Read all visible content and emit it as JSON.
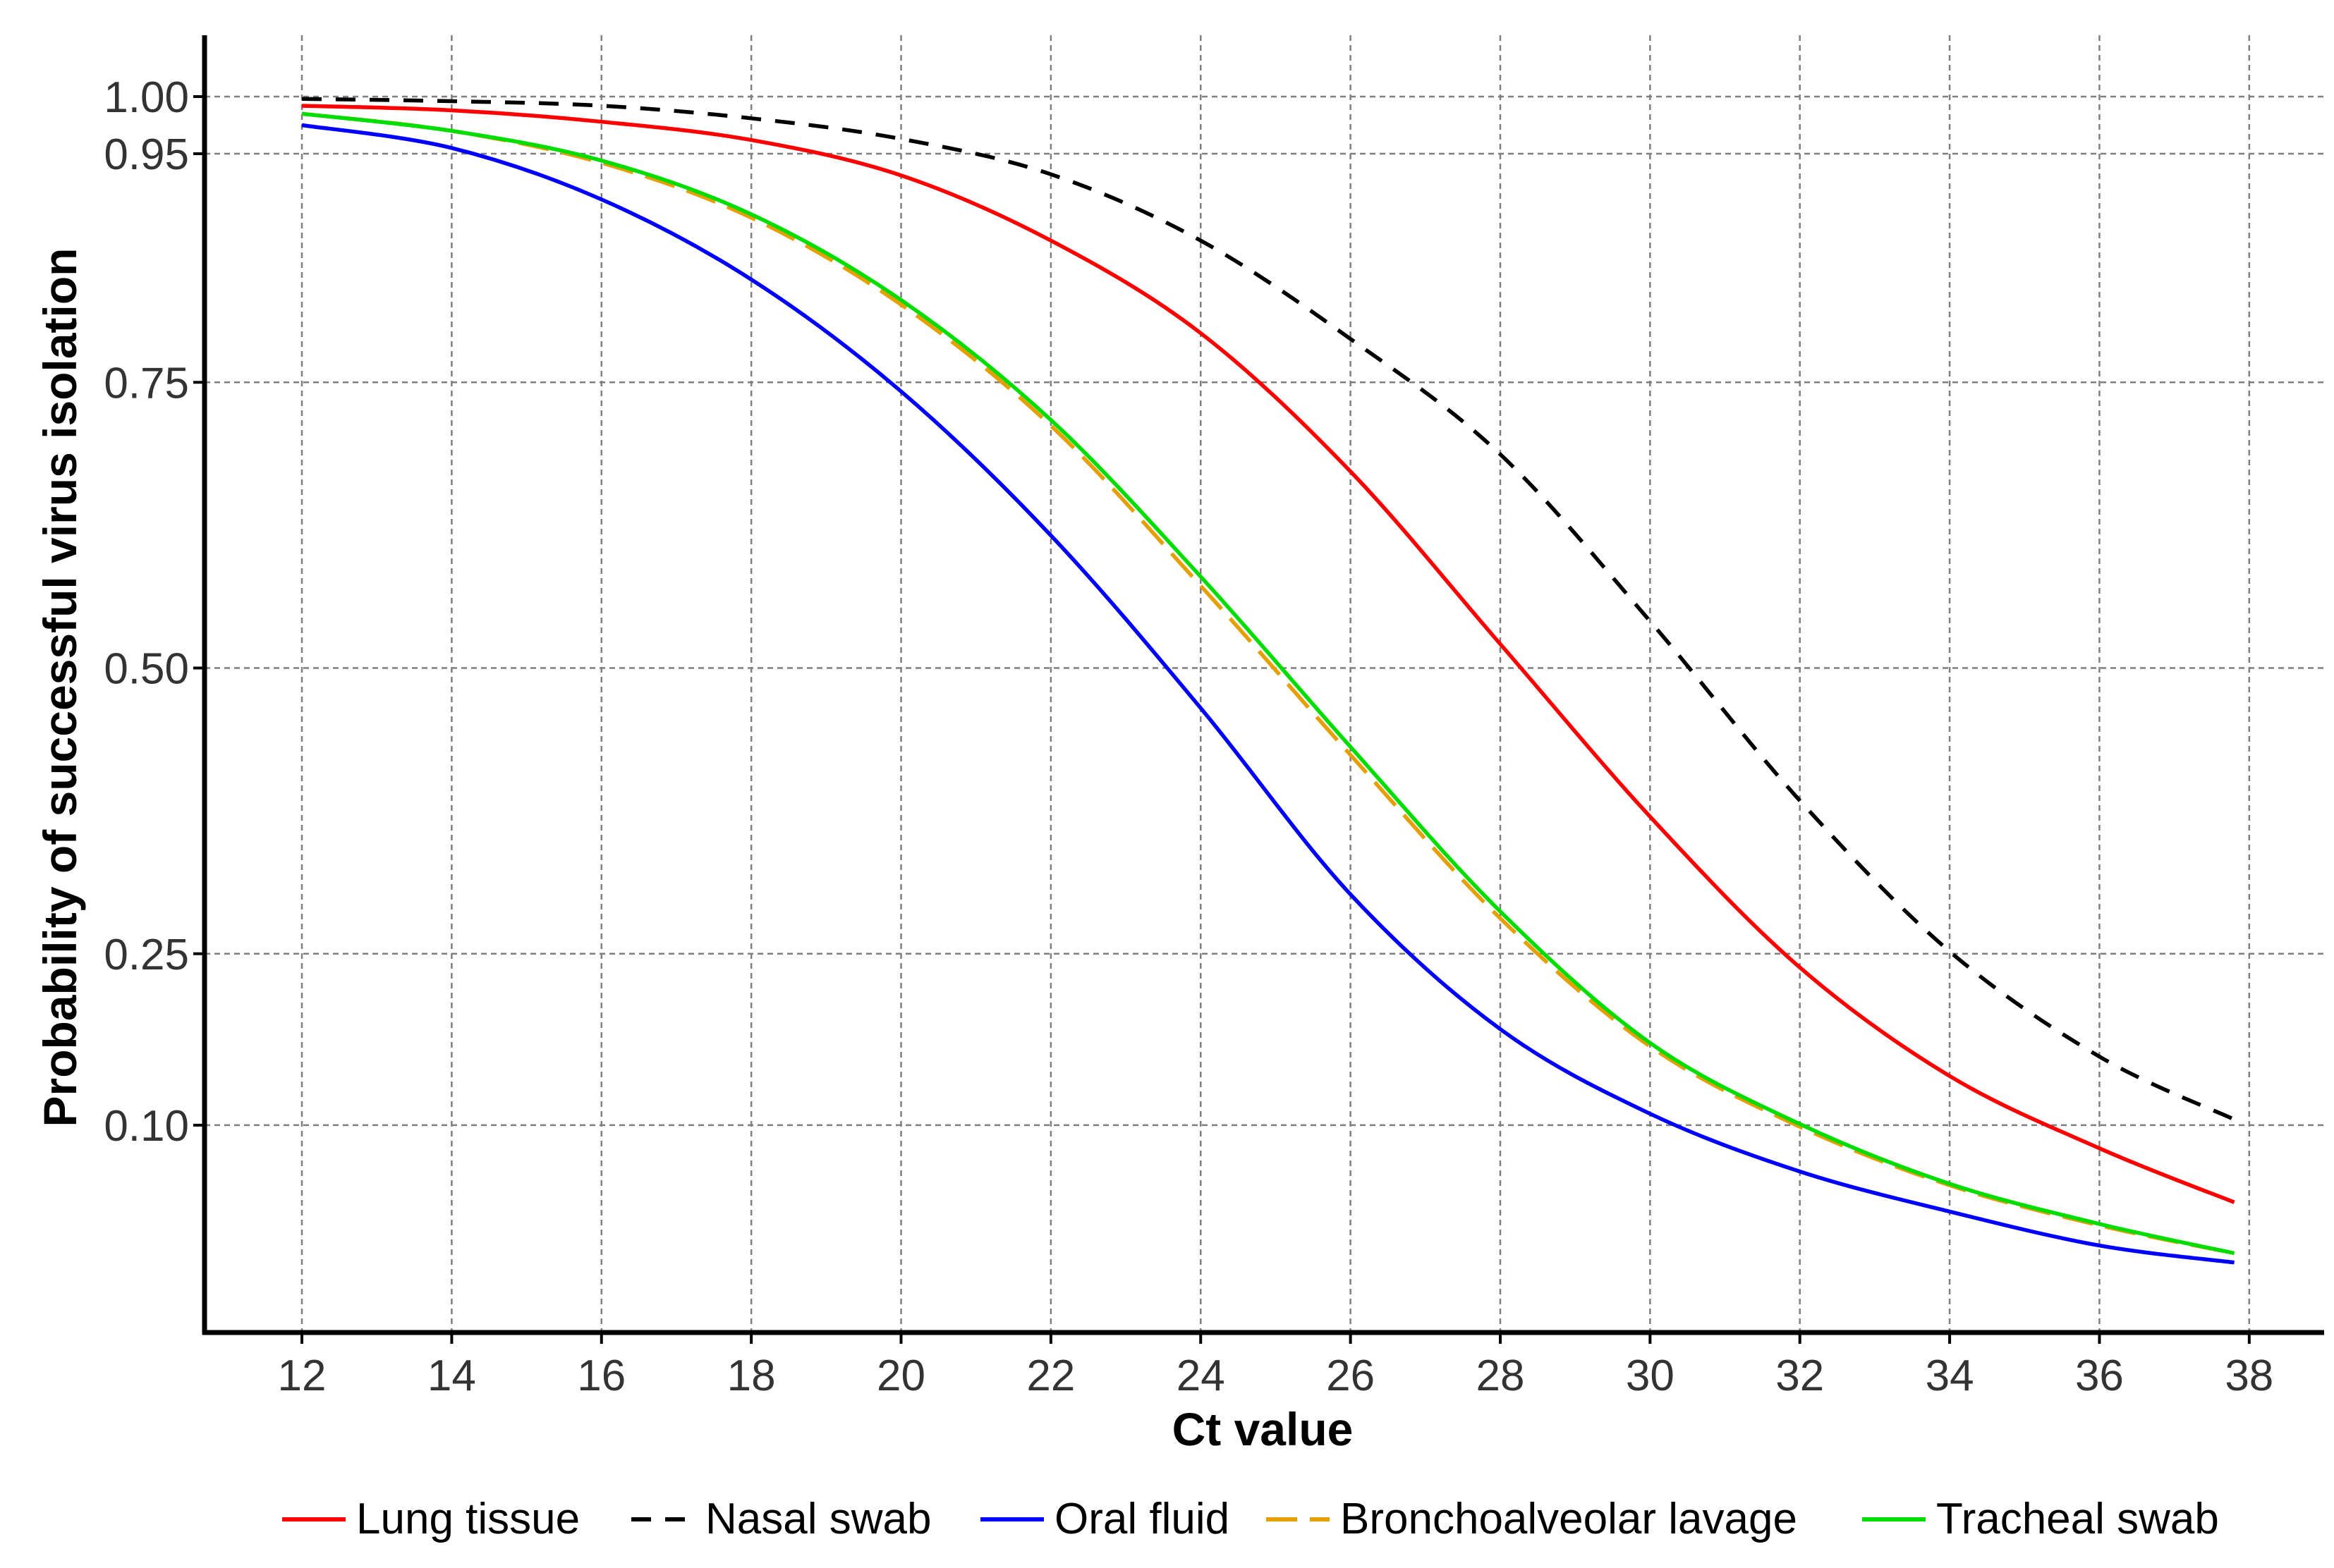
{
  "chart_data": {
    "type": "line",
    "title": "",
    "xlabel": "Ct value",
    "ylabel": "Probability of successful virus isolation",
    "xlim": [
      10.7,
      39.0
    ],
    "xticks": [
      12,
      14,
      16,
      18,
      20,
      22,
      24,
      26,
      28,
      30,
      32,
      34,
      36,
      38
    ],
    "xtick_labels": [
      "12",
      "14",
      "16",
      "18",
      "20",
      "22",
      "24",
      "26",
      "28",
      "30",
      "32",
      "34",
      "36",
      "38"
    ],
    "yaxis_anchors": [
      [
        1.0,
        1.0
      ],
      [
        0.95,
        0.95
      ],
      [
        0.75,
        0.75
      ],
      [
        0.5,
        0.5
      ],
      [
        0.25,
        0.25
      ],
      [
        0.1,
        0.1
      ],
      [
        0.0,
        -0.035
      ]
    ],
    "yticks": [
      1.0,
      0.95,
      0.75,
      0.5,
      0.25,
      0.1
    ],
    "ytick_labels": [
      "1.00",
      "0.95",
      "0.75",
      "0.50",
      "0.25",
      "0.10"
    ],
    "grid": true,
    "legend_position": "bottom",
    "series": [
      {
        "name": "Lung tissue",
        "color": "#ff0000",
        "dash": "solid",
        "x": [
          12,
          14,
          16,
          18,
          20,
          22,
          24,
          26,
          28,
          30,
          32,
          34,
          36,
          37.8
        ],
        "y": [
          0.992,
          0.988,
          0.978,
          0.962,
          0.931,
          0.874,
          0.793,
          0.672,
          0.521,
          0.37,
          0.238,
          0.143,
          0.085,
          0.05
        ]
      },
      {
        "name": "Nasal swab",
        "color": "#000000",
        "dash": "dashed",
        "x": [
          12,
          14,
          16,
          18,
          20,
          22,
          24,
          26,
          28,
          30,
          32,
          34,
          36,
          37.8
        ],
        "y": [
          0.998,
          0.996,
          0.992,
          0.981,
          0.963,
          0.932,
          0.874,
          0.788,
          0.687,
          0.541,
          0.384,
          0.252,
          0.16,
          0.105
        ]
      },
      {
        "name": "Oral fluid",
        "color": "#0000ff",
        "dash": "solid",
        "x": [
          12,
          14,
          16,
          18,
          20,
          22,
          24,
          26,
          28,
          30,
          32,
          34,
          36,
          37.8
        ],
        "y": [
          0.975,
          0.955,
          0.91,
          0.84,
          0.742,
          0.616,
          0.465,
          0.302,
          0.184,
          0.11,
          0.07,
          0.044,
          0.022,
          0.011
        ]
      },
      {
        "name": "Bronchoalveolar lavage",
        "color": "#e69f00",
        "dash": "longdash",
        "x": [
          12,
          14,
          16,
          18,
          20,
          22,
          24,
          26,
          28,
          30,
          32,
          34,
          36,
          37.8
        ],
        "y": [
          0.985,
          0.97,
          0.942,
          0.894,
          0.818,
          0.712,
          0.572,
          0.424,
          0.281,
          0.169,
          0.099,
          0.061,
          0.035,
          0.017
        ]
      },
      {
        "name": "Tracheal swab",
        "color": "#00dd00",
        "dash": "solid",
        "x": [
          12,
          14,
          16,
          18,
          20,
          22,
          24,
          26,
          28,
          30,
          32,
          34,
          36,
          37.8
        ],
        "y": [
          0.985,
          0.97,
          0.944,
          0.897,
          0.822,
          0.717,
          0.58,
          0.431,
          0.287,
          0.172,
          0.101,
          0.062,
          0.036,
          0.017
        ]
      }
    ]
  }
}
